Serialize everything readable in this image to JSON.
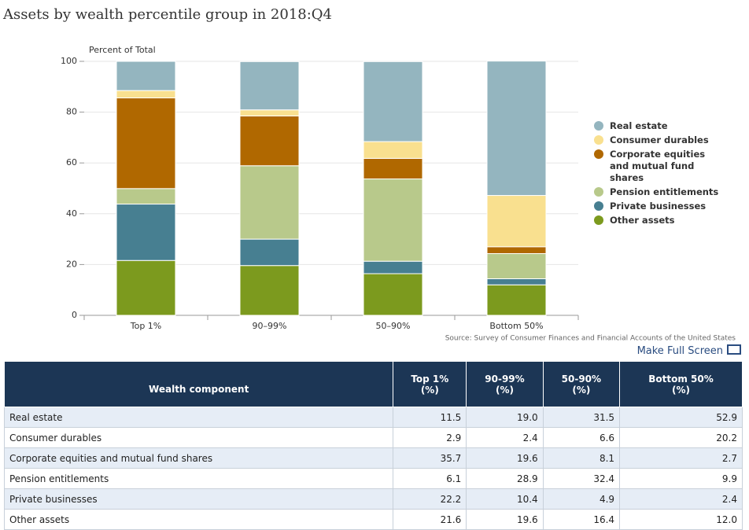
{
  "chart_data": {
    "type": "bar",
    "stacked": true,
    "title": "Assets by wealth percentile group in 2018:Q4",
    "ylabel": "Percent of Total",
    "categories": [
      "Top 1%",
      "90–99%",
      "50–90%",
      "Bottom 50%"
    ],
    "series": [
      {
        "name": "Real estate",
        "color": "#94b5bf",
        "values": [
          11.5,
          19.0,
          31.5,
          52.9
        ],
        "value_labels": [
          "11.5",
          "19.0",
          "31.5",
          "52.9"
        ]
      },
      {
        "name": "Consumer durables",
        "color": "#f9e08f",
        "values": [
          2.9,
          2.4,
          6.6,
          20.2
        ],
        "value_labels": [
          "2.9",
          "2.4",
          "6.6",
          "20.2"
        ]
      },
      {
        "name": "Corporate equities and mutual fund shares",
        "color": "#b06800",
        "values": [
          35.7,
          19.6,
          8.1,
          2.7
        ],
        "value_labels": [
          "35.7",
          "19.6",
          "8.1",
          "2.7"
        ]
      },
      {
        "name": "Pension entitlements",
        "color": "#b8c98b",
        "values": [
          6.1,
          28.9,
          32.4,
          9.9
        ],
        "value_labels": [
          "6.1",
          "28.9",
          "32.4",
          "9.9"
        ]
      },
      {
        "name": "Private businesses",
        "color": "#477f91",
        "values": [
          22.2,
          10.4,
          4.9,
          2.4
        ],
        "value_labels": [
          "22.2",
          "10.4",
          "4.9",
          "2.4"
        ]
      },
      {
        "name": "Other assets",
        "color": "#7c9a1e",
        "values": [
          21.6,
          19.6,
          16.4,
          12.0
        ],
        "value_labels": [
          "21.6",
          "19.6",
          "16.4",
          "12.0"
        ]
      }
    ],
    "ylim": [
      0,
      100
    ],
    "yticks": [
      0,
      20,
      40,
      60,
      80,
      100
    ],
    "grid": true,
    "legend": "right",
    "source": "Source: Survey of Consumer Finances and Financial Accounts of the United States"
  },
  "button": "Make Full Screen",
  "table": {
    "header": "Wealth component",
    "columns": [
      {
        "name": "Top 1%",
        "unit": "(%)"
      },
      {
        "name": "90-99%",
        "unit": "(%)"
      },
      {
        "name": "50-90%",
        "unit": "(%)"
      },
      {
        "name": "Bottom 50%",
        "unit": "(%)"
      }
    ]
  }
}
